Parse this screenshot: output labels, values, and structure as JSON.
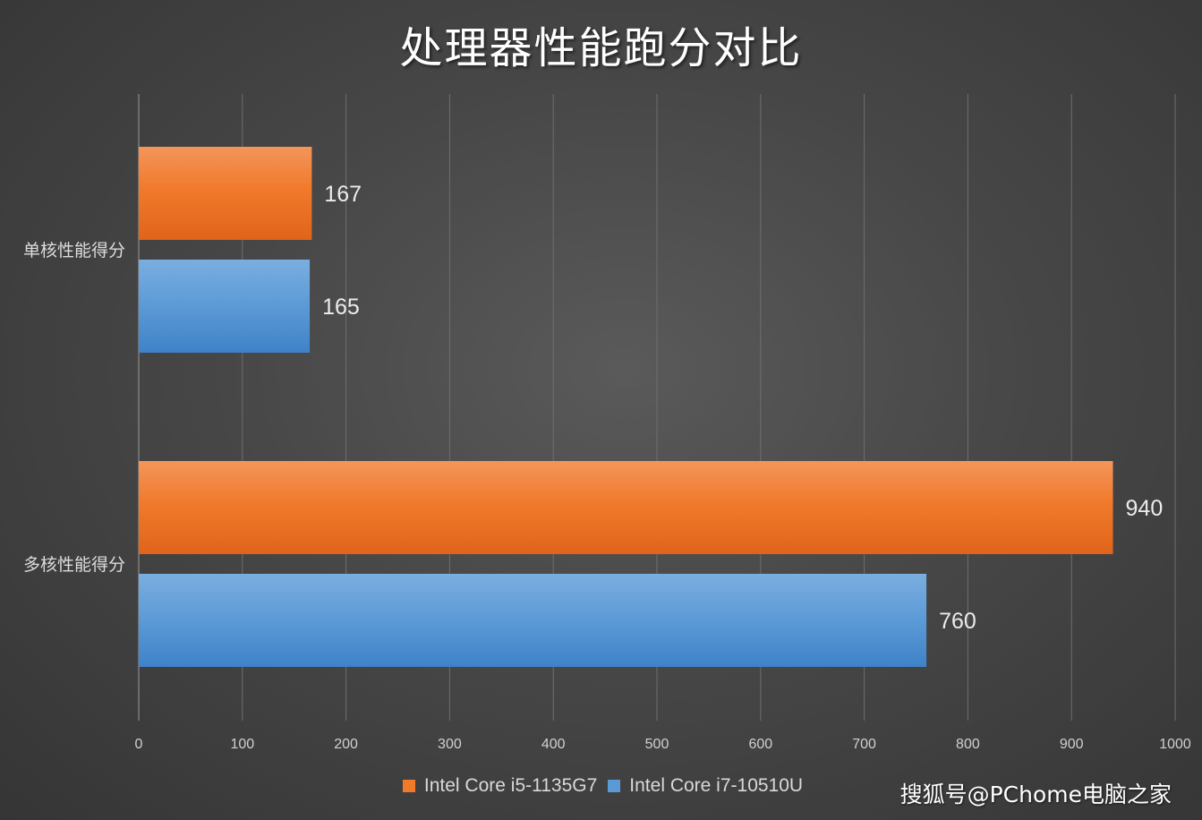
{
  "chart_data": {
    "type": "bar",
    "orientation": "horizontal",
    "title": "处理器性能跑分对比",
    "categories": [
      "单核性能得分",
      "多核性能得分"
    ],
    "series": [
      {
        "name": "Intel Core i5-1135G7",
        "values": [
          167,
          940
        ],
        "color": "#ef7a2a"
      },
      {
        "name": "Intel Core i7-10510U",
        "values": [
          165,
          760
        ],
        "color": "#5b9bd5"
      }
    ],
    "xlim": [
      0,
      1000
    ],
    "xticks": [
      0,
      100,
      200,
      300,
      400,
      500,
      600,
      700,
      800,
      900,
      1000
    ],
    "grid": true,
    "legend": "bottom",
    "data_labels": true
  },
  "watermark": "搜狐号@PChome电脑之家"
}
